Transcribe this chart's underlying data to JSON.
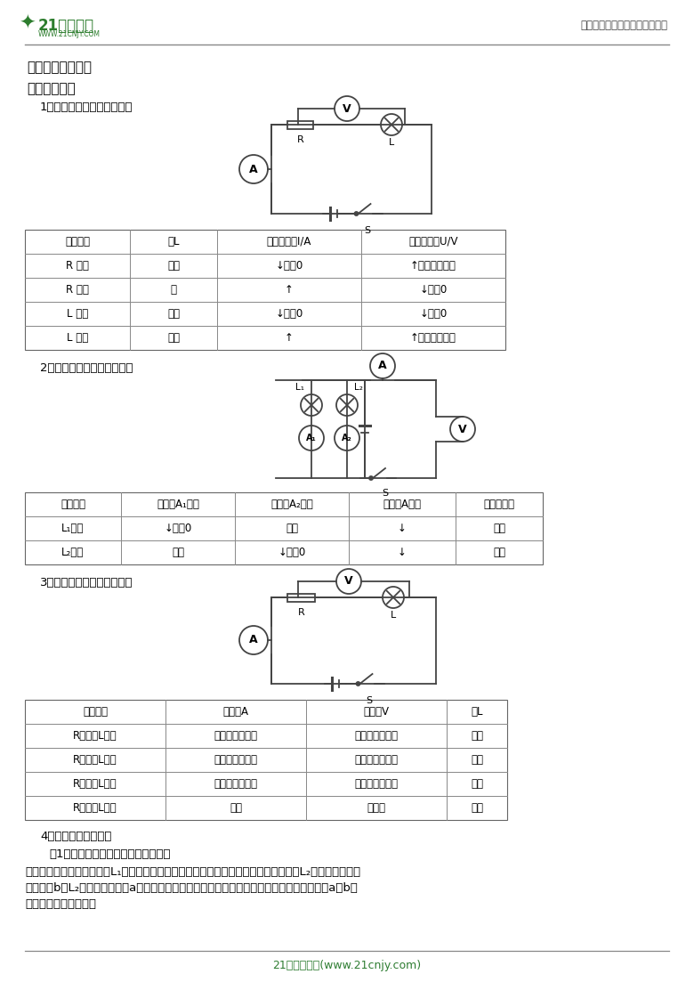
{
  "title_header": "中小学教育资源及组卷应用平台",
  "section_title": "考点二、故障分析",
  "subsection_title": "一、电路故障",
  "sub1_title": "1、串联电路单故障判断方法",
  "sub2_title": "2、并联电路单故障判断方法",
  "sub3_title": "3、串联电路双故障判断方法",
  "sub4_title": "4、电表判断电路故障",
  "sub4_sub": "（1）用电压表判断（电路已有故障）",
  "sub4_line1": "如图所示，可先让电压表与L₁并联，若无示数，则电源可能损坏，或电源处断路；若和L₂并联时无示数，",
  "sub4_line2": "则可能从b经L₂开关、电源再到a的这部分电路中出现断路；若有示数且接近电源电压则应是从a到b的",
  "sub4_line3": "这部分电路出现断路。",
  "footer": "21世纪教育网(www.21cnjy.com)",
  "table1_headers": [
    "故障原因",
    "灯L",
    "电流表示数I/A",
    "电压表示数U/V"
  ],
  "table1_rows": [
    [
      "R 断路",
      "不亮",
      "↓变为0",
      "↑变为电源电压"
    ],
    [
      "R 短路",
      "亮",
      "↑",
      "↓变为0"
    ],
    [
      "L 断路",
      "不亮",
      "↓变为0",
      "↓变为0"
    ],
    [
      "L 短路",
      "不亮",
      "↑",
      "↑变为电源电压"
    ]
  ],
  "table2_headers": [
    "故障原因",
    "电流表A₁示数",
    "电流表A₂示数",
    "电流表A示数",
    "电压表示数"
  ],
  "table2_rows": [
    [
      "L₁断路",
      "↓变为0",
      "不变",
      "↓",
      "不变"
    ],
    [
      "L₂断路",
      "不变",
      "↓变为0",
      "↓",
      "不变"
    ]
  ],
  "table3_headers": [
    "故障原因",
    "电流表A",
    "电压表V",
    "灯L"
  ],
  "table3_rows": [
    [
      "R断路、L短路",
      "无示数（变小）",
      "有示数（变大）",
      "不亮"
    ],
    [
      "R断路、L断路",
      "无示数（变小）",
      "无示数（变小）",
      "不亮"
    ],
    [
      "R短路、L断路",
      "无示数（变小）",
      "无示数（变小）",
      "不亮"
    ],
    [
      "R短路、L短路",
      "烧坏",
      "无示数",
      "不亮"
    ]
  ],
  "bg_color": "#ffffff",
  "green_color": "#2e7d32",
  "wire_color": "#444444",
  "circuit_lw": 1.3
}
